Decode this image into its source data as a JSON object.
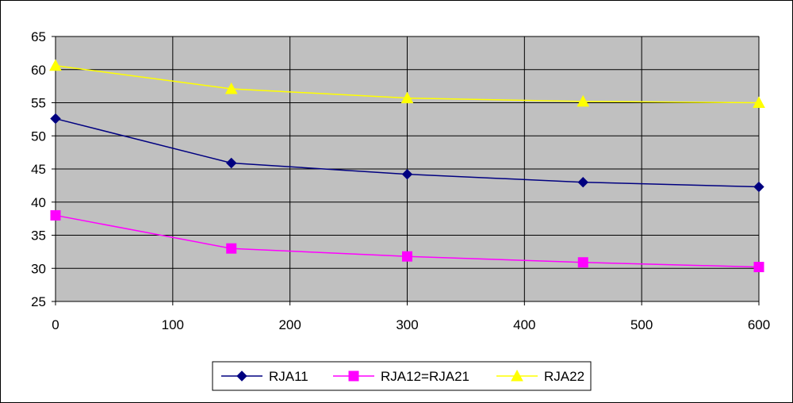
{
  "chart_data": {
    "type": "line",
    "title": "",
    "xlabel": "",
    "ylabel": "",
    "x": [
      0,
      150,
      300,
      450,
      600
    ],
    "xlim": [
      0,
      600
    ],
    "ylim": [
      25,
      65
    ],
    "xticks": [
      0,
      100,
      200,
      300,
      400,
      500,
      600
    ],
    "yticks": [
      25,
      30,
      35,
      40,
      45,
      50,
      55,
      60,
      65
    ],
    "grid": true,
    "plot_background": "#C0C0C0",
    "legend_position": "bottom",
    "series": [
      {
        "name": "RJA11",
        "values": [
          52.6,
          45.9,
          44.2,
          43.0,
          42.3
        ],
        "color": "#000080",
        "marker": "diamond"
      },
      {
        "name": "RJA12=RJA21",
        "values": [
          38.0,
          33.0,
          31.8,
          30.9,
          30.2
        ],
        "color": "#FF00FF",
        "marker": "square"
      },
      {
        "name": "RJA22",
        "values": [
          60.6,
          57.1,
          55.7,
          55.2,
          55.0
        ],
        "color": "#FFFF00",
        "marker": "triangle"
      }
    ]
  }
}
